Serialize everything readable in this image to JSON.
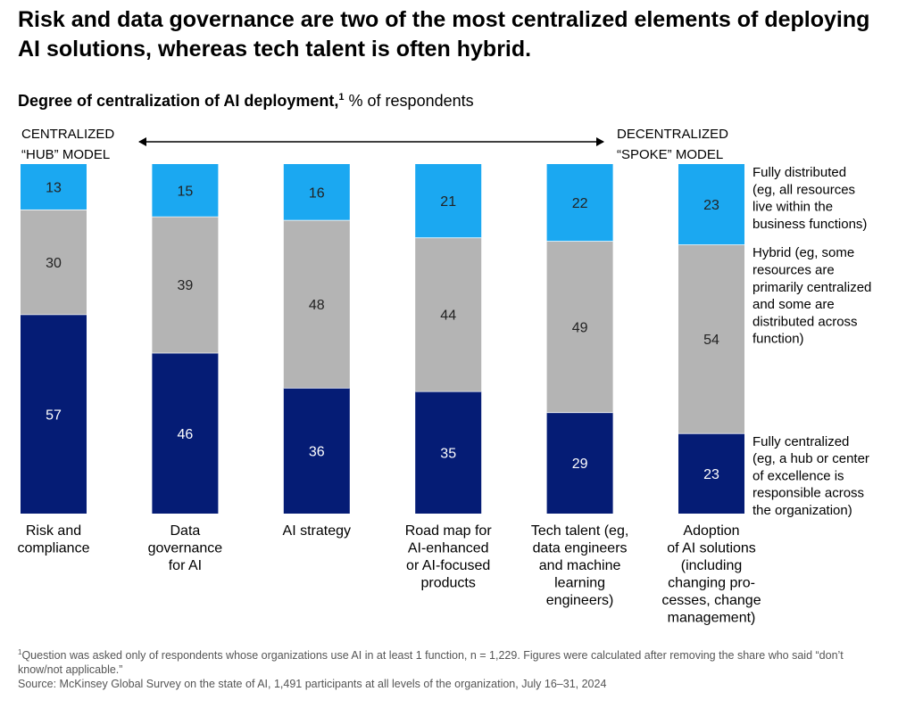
{
  "header": {
    "title": "Risk and data governance are two of the most centralized elements of deploying AI solutions, whereas tech talent is often hybrid."
  },
  "chart_data": {
    "type": "bar",
    "stacked": true,
    "title": "Degree of centralization of AI deployment,",
    "title_footnote_marker": "1",
    "units": "% of respondents",
    "categories": [
      "Risk and compliance",
      "Data governance for AI",
      "AI strategy",
      "Road map for AI-enhanced or AI-focused products",
      "Tech talent (eg, data engineers and machine learning engineers)",
      "Adoption of AI solutions (including changing pro-cesses, change management)"
    ],
    "category_label_lines": [
      [
        "Risk and",
        "compliance"
      ],
      [
        "Data",
        "governance",
        "for AI"
      ],
      [
        "AI strategy"
      ],
      [
        "Road map for",
        "AI-enhanced",
        "or AI-focused",
        "products"
      ],
      [
        "Tech talent (eg,",
        "data engineers",
        "and machine",
        "learning",
        "engineers)"
      ],
      [
        "Adoption",
        "of AI solutions",
        "(including",
        "changing pro-",
        "cesses, change",
        "management)"
      ]
    ],
    "series": [
      {
        "name": "Fully centralized (eg, a hub or center of excellence is responsible across the organization)",
        "legend_lines": [
          "Fully centralized",
          "(eg, a hub or center",
          "of excellence is",
          "responsible across",
          "the organization)"
        ],
        "color": "#051c75",
        "label_color": "#ffffff",
        "values": [
          57,
          46,
          36,
          35,
          29,
          23
        ]
      },
      {
        "name": "Hybrid (eg, some resources are primarily centralized and some are distributed across function)",
        "legend_lines": [
          "Hybrid (eg, some",
          "resources are",
          "primarily centralized",
          "and some are",
          "distributed across",
          "function)"
        ],
        "color": "#b4b4b4",
        "label_color": "#222222",
        "values": [
          30,
          39,
          48,
          44,
          49,
          54
        ]
      },
      {
        "name": "Fully distributed (eg, all resources live within the business functions)",
        "legend_lines": [
          "Fully distributed",
          "(eg, all resources",
          "live within the",
          "business functions)"
        ],
        "color": "#1ba8f1",
        "label_color": "#222222",
        "values": [
          13,
          15,
          16,
          21,
          22,
          23
        ]
      }
    ],
    "scale_ends": {
      "left": [
        "CENTRALIZED",
        "“HUB” MODEL"
      ],
      "right": [
        "DECENTRALIZED",
        "“SPOKE” MODEL"
      ]
    },
    "ylim": [
      0,
      100
    ],
    "grid": false,
    "legend_position": "right"
  },
  "footnotes": {
    "marker": "1",
    "note": "Question was asked only of respondents whose organizations use AI in at least 1 function, n = 1,229. Figures were calculated after removing the share who said “don’t know/not applicable.”",
    "source": "Source: McKinsey Global Survey on the state of AI, 1,491 participants at all levels of the organization, July 16–31, 2024"
  }
}
